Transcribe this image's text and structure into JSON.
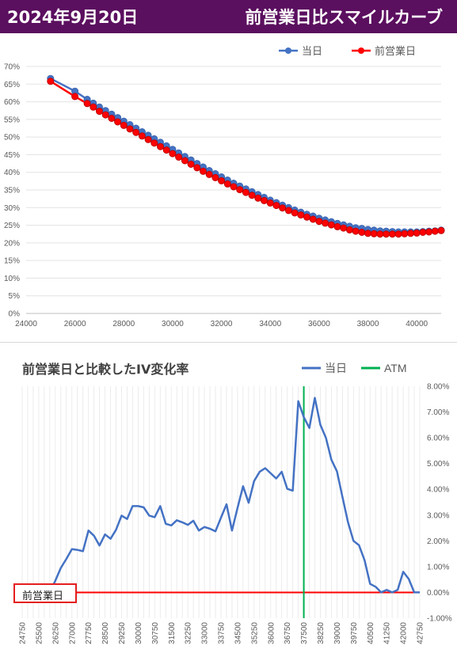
{
  "header": {
    "date": "2024年9月20日",
    "title": "前営業日比スマイルカーブ"
  },
  "chart_data": [
    {
      "type": "line",
      "title": "",
      "xlabel": "",
      "ylabel": "",
      "xlim": [
        24000,
        41000
      ],
      "ylim": [
        0,
        0.7
      ],
      "x_ticks": [
        "24000",
        "26000",
        "28000",
        "30000",
        "32000",
        "34000",
        "36000",
        "38000",
        "40000"
      ],
      "y_ticks": [
        "0%",
        "5%",
        "10%",
        "15%",
        "20%",
        "25%",
        "30%",
        "35%",
        "40%",
        "45%",
        "50%",
        "55%",
        "60%",
        "65%",
        "70%"
      ],
      "grid": "horizontal",
      "legend_position": "top-right",
      "series": [
        {
          "name": "当日",
          "color": "#4472c4",
          "points": [
            [
              25000,
              0.666
            ],
            [
              26000,
              0.63
            ],
            [
              26500,
              0.607
            ],
            [
              26750,
              0.596
            ],
            [
              27000,
              0.585
            ],
            [
              27250,
              0.575
            ],
            [
              27500,
              0.565
            ],
            [
              27750,
              0.555
            ],
            [
              28000,
              0.545
            ],
            [
              28250,
              0.535
            ],
            [
              28500,
              0.525
            ],
            [
              28750,
              0.515
            ],
            [
              29000,
              0.505
            ],
            [
              29250,
              0.495
            ],
            [
              29500,
              0.485
            ],
            [
              29750,
              0.475
            ],
            [
              30000,
              0.465
            ],
            [
              30250,
              0.455
            ],
            [
              30500,
              0.445
            ],
            [
              30750,
              0.435
            ],
            [
              31000,
              0.425
            ],
            [
              31250,
              0.415
            ],
            [
              31500,
              0.405
            ],
            [
              31750,
              0.396
            ],
            [
              32000,
              0.387
            ],
            [
              32250,
              0.378
            ],
            [
              32500,
              0.369
            ],
            [
              32750,
              0.361
            ],
            [
              33000,
              0.353
            ],
            [
              33250,
              0.345
            ],
            [
              33500,
              0.337
            ],
            [
              33750,
              0.329
            ],
            [
              34000,
              0.321
            ],
            [
              34250,
              0.314
            ],
            [
              34500,
              0.307
            ],
            [
              34750,
              0.3
            ],
            [
              35000,
              0.293
            ],
            [
              35250,
              0.287
            ],
            [
              35500,
              0.281
            ],
            [
              35750,
              0.276
            ],
            [
              36000,
              0.27
            ],
            [
              36250,
              0.265
            ],
            [
              36500,
              0.26
            ],
            [
              36750,
              0.255
            ],
            [
              37000,
              0.251
            ],
            [
              37250,
              0.247
            ],
            [
              37500,
              0.243
            ],
            [
              37750,
              0.241
            ],
            [
              38000,
              0.238
            ],
            [
              38250,
              0.236
            ],
            [
              38500,
              0.234
            ],
            [
              38750,
              0.233
            ],
            [
              39000,
              0.232
            ],
            [
              39250,
              0.231
            ],
            [
              39500,
              0.231
            ],
            [
              39750,
              0.231
            ],
            [
              40000,
              0.231
            ],
            [
              40250,
              0.232
            ],
            [
              40500,
              0.233
            ],
            [
              40750,
              0.234
            ],
            [
              41000,
              0.236
            ]
          ]
        },
        {
          "name": "前営業日",
          "color": "#ff0000",
          "points": [
            [
              25000,
              0.658
            ],
            [
              26000,
              0.615
            ],
            [
              26500,
              0.595
            ],
            [
              26750,
              0.585
            ],
            [
              27000,
              0.573
            ],
            [
              27250,
              0.563
            ],
            [
              27500,
              0.553
            ],
            [
              27750,
              0.543
            ],
            [
              28000,
              0.533
            ],
            [
              28250,
              0.523
            ],
            [
              28500,
              0.513
            ],
            [
              28750,
              0.503
            ],
            [
              29000,
              0.493
            ],
            [
              29250,
              0.483
            ],
            [
              29500,
              0.473
            ],
            [
              29750,
              0.463
            ],
            [
              30000,
              0.453
            ],
            [
              30250,
              0.443
            ],
            [
              30500,
              0.433
            ],
            [
              30750,
              0.423
            ],
            [
              31000,
              0.413
            ],
            [
              31250,
              0.403
            ],
            [
              31500,
              0.394
            ],
            [
              31750,
              0.385
            ],
            [
              32000,
              0.376
            ],
            [
              32250,
              0.367
            ],
            [
              32500,
              0.359
            ],
            [
              32750,
              0.351
            ],
            [
              33000,
              0.343
            ],
            [
              33250,
              0.335
            ],
            [
              33500,
              0.327
            ],
            [
              33750,
              0.32
            ],
            [
              34000,
              0.313
            ],
            [
              34250,
              0.306
            ],
            [
              34500,
              0.299
            ],
            [
              34750,
              0.292
            ],
            [
              35000,
              0.285
            ],
            [
              35250,
              0.279
            ],
            [
              35500,
              0.273
            ],
            [
              35750,
              0.267
            ],
            [
              36000,
              0.261
            ],
            [
              36250,
              0.256
            ],
            [
              36500,
              0.251
            ],
            [
              36750,
              0.246
            ],
            [
              37000,
              0.242
            ],
            [
              37250,
              0.237
            ],
            [
              37500,
              0.233
            ],
            [
              37750,
              0.23
            ],
            [
              38000,
              0.227
            ],
            [
              38250,
              0.226
            ],
            [
              38500,
              0.225
            ],
            [
              38750,
              0.225
            ],
            [
              39000,
              0.225
            ],
            [
              39250,
              0.225
            ],
            [
              39500,
              0.226
            ],
            [
              39750,
              0.227
            ],
            [
              40000,
              0.228
            ],
            [
              40250,
              0.23
            ],
            [
              40500,
              0.231
            ],
            [
              40750,
              0.233
            ],
            [
              41000,
              0.235
            ]
          ]
        }
      ]
    },
    {
      "type": "line",
      "title": "前営業日と比較したIV変化率",
      "xlabel": "",
      "ylabel": "",
      "x_ticks": [
        "24750",
        "25500",
        "26250",
        "27000",
        "27750",
        "28500",
        "29250",
        "30000",
        "30750",
        "31500",
        "32250",
        "33000",
        "33750",
        "34500",
        "35250",
        "36000",
        "36750",
        "37500",
        "38250",
        "39000",
        "39750",
        "40500",
        "41250",
        "42000",
        "42750"
      ],
      "y_ticks": [
        "-1.00%",
        "0.00%",
        "1.00%",
        "2.00%",
        "3.00%",
        "4.00%",
        "5.00%",
        "6.00%",
        "7.00%",
        "8.00%"
      ],
      "ylim": [
        -0.01,
        0.08
      ],
      "xlim": [
        24750,
        42750
      ],
      "grid": "vertical",
      "legend_position": "top-right",
      "atm_x": 37500,
      "reference_label": "前営業日",
      "series": [
        {
          "name": "当日",
          "color": "#4472c4",
          "points": [
            [
              26000,
              0.0
            ],
            [
              26250,
              0.0045
            ],
            [
              26500,
              0.0095
            ],
            [
              26750,
              0.013
            ],
            [
              27000,
              0.0168
            ],
            [
              27250,
              0.0165
            ],
            [
              27500,
              0.016
            ],
            [
              27750,
              0.024
            ],
            [
              28000,
              0.022
            ],
            [
              28250,
              0.0182
            ],
            [
              28500,
              0.0225
            ],
            [
              28750,
              0.0208
            ],
            [
              29000,
              0.0243
            ],
            [
              29250,
              0.0298
            ],
            [
              29500,
              0.0285
            ],
            [
              29750,
              0.0335
            ],
            [
              30000,
              0.0335
            ],
            [
              30250,
              0.033
            ],
            [
              30500,
              0.0298
            ],
            [
              30750,
              0.0292
            ],
            [
              31000,
              0.0335
            ],
            [
              31250,
              0.0266
            ],
            [
              31500,
              0.026
            ],
            [
              31750,
              0.028
            ],
            [
              32000,
              0.0272
            ],
            [
              32250,
              0.0262
            ],
            [
              32500,
              0.0278
            ],
            [
              32750,
              0.024
            ],
            [
              33000,
              0.0254
            ],
            [
              33250,
              0.0247
            ],
            [
              33500,
              0.0237
            ],
            [
              33750,
              0.029
            ],
            [
              34000,
              0.0342
            ],
            [
              34250,
              0.024
            ],
            [
              34500,
              0.0328
            ],
            [
              34750,
              0.0412
            ],
            [
              35000,
              0.0348
            ],
            [
              35250,
              0.0432
            ],
            [
              35500,
              0.0468
            ],
            [
              35750,
              0.0482
            ],
            [
              36000,
              0.0462
            ],
            [
              36250,
              0.0442
            ],
            [
              36500,
              0.0468
            ],
            [
              36750,
              0.0402
            ],
            [
              37000,
              0.0395
            ],
            [
              37250,
              0.0742
            ],
            [
              37500,
              0.068
            ],
            [
              37750,
              0.0638
            ],
            [
              38000,
              0.0755
            ],
            [
              38250,
              0.065
            ],
            [
              38500,
              0.06
            ],
            [
              38750,
              0.0515
            ],
            [
              39000,
              0.047
            ],
            [
              39250,
              0.037
            ],
            [
              39500,
              0.0272
            ],
            [
              39750,
              0.02
            ],
            [
              40000,
              0.0183
            ],
            [
              40250,
              0.0125
            ],
            [
              40500,
              0.0033
            ],
            [
              40750,
              0.0022
            ],
            [
              41000,
              0.0
            ],
            [
              41250,
              0.001
            ],
            [
              41500,
              0.0
            ],
            [
              41750,
              0.001
            ],
            [
              42000,
              0.008
            ],
            [
              42250,
              0.0052
            ],
            [
              42500,
              0.0
            ],
            [
              42750,
              0.0
            ]
          ]
        },
        {
          "name": "ATM",
          "color": "#00b050",
          "points": []
        }
      ]
    }
  ]
}
